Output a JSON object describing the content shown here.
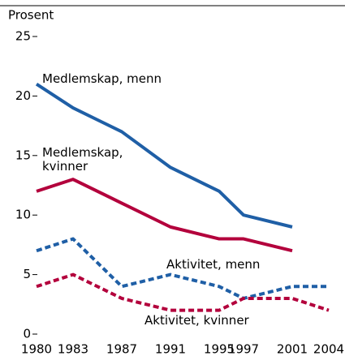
{
  "chart_data": {
    "type": "line",
    "y_label": "Prosent",
    "x": [
      1980,
      1983,
      1987,
      1991,
      1995,
      1997,
      2001,
      2004
    ],
    "xlim": [
      1980,
      2004
    ],
    "xticks": [
      1980,
      1983,
      1987,
      1991,
      1995,
      1997,
      2001,
      2004
    ],
    "ylim": [
      0,
      25
    ],
    "yticks": [
      0,
      5,
      10,
      15,
      20,
      25
    ],
    "series": [
      {
        "name": "Medlemskap, menn",
        "color": "#1f5fa6",
        "dashed": false,
        "values": [
          21,
          19,
          17,
          14,
          12,
          10,
          9,
          null
        ]
      },
      {
        "name": "Medlemskap, kvinner",
        "color": "#b3003c",
        "dashed": false,
        "values": [
          12,
          13,
          11,
          9,
          8,
          8,
          7,
          null
        ]
      },
      {
        "name": "Aktivitet, menn",
        "color": "#1f5fa6",
        "dashed": true,
        "values": [
          7,
          8,
          4,
          5,
          4,
          3,
          4,
          4
        ]
      },
      {
        "name": "Aktivitet, kvinner",
        "color": "#b3003c",
        "dashed": true,
        "values": [
          4,
          5,
          3,
          2,
          2,
          3,
          3,
          2
        ]
      }
    ]
  }
}
